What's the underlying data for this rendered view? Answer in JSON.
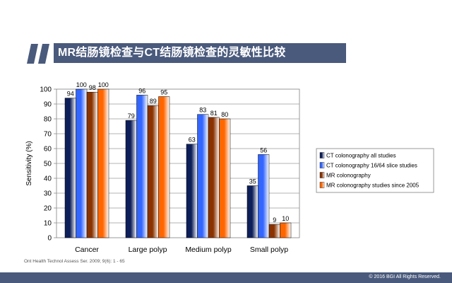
{
  "slide": {
    "title": "MR结肠镜检查与CT结肠镜检查的灵敏性比较",
    "source": "Ont Health Technol Assess Ser. 2009; 9(6): 1 - 65",
    "copyright": "© 2016 BGI All Rights Reserved.",
    "accent_color": "#4a5a7c",
    "quote_icon": "double-quote-icon"
  },
  "chart_data": {
    "type": "bar",
    "title": "",
    "xlabel": "",
    "ylabel": "Sensitivity (%)",
    "ylim": [
      0,
      100
    ],
    "yticks": [
      0,
      10,
      20,
      30,
      40,
      50,
      60,
      70,
      80,
      90,
      100
    ],
    "grid": true,
    "legend_position": "right",
    "categories": [
      "Cancer",
      "Large polyp",
      "Medium polyp",
      "Small polyp"
    ],
    "series": [
      {
        "name": "CT colonography all studies",
        "values": [
          94,
          79,
          63,
          35
        ],
        "labels": [
          "94",
          "79",
          "63",
          "35"
        ],
        "color": "#0d1f5a"
      },
      {
        "name": "CT colonography 16/64 slice studies",
        "values": [
          100,
          96,
          83,
          56
        ],
        "labels": [
          "100",
          "96",
          "83",
          "56"
        ],
        "color": "#3366ff"
      },
      {
        "name": "MR colonography",
        "values": [
          98,
          89,
          81,
          9
        ],
        "labels": [
          "98",
          "89",
          "81",
          "9"
        ],
        "color": "#8b3300"
      },
      {
        "name": "MR colonography studies since 2005",
        "values": [
          100,
          95,
          80,
          10
        ],
        "labels": [
          "100",
          "95",
          "80",
          "10"
        ],
        "color": "#ff6600"
      }
    ]
  }
}
